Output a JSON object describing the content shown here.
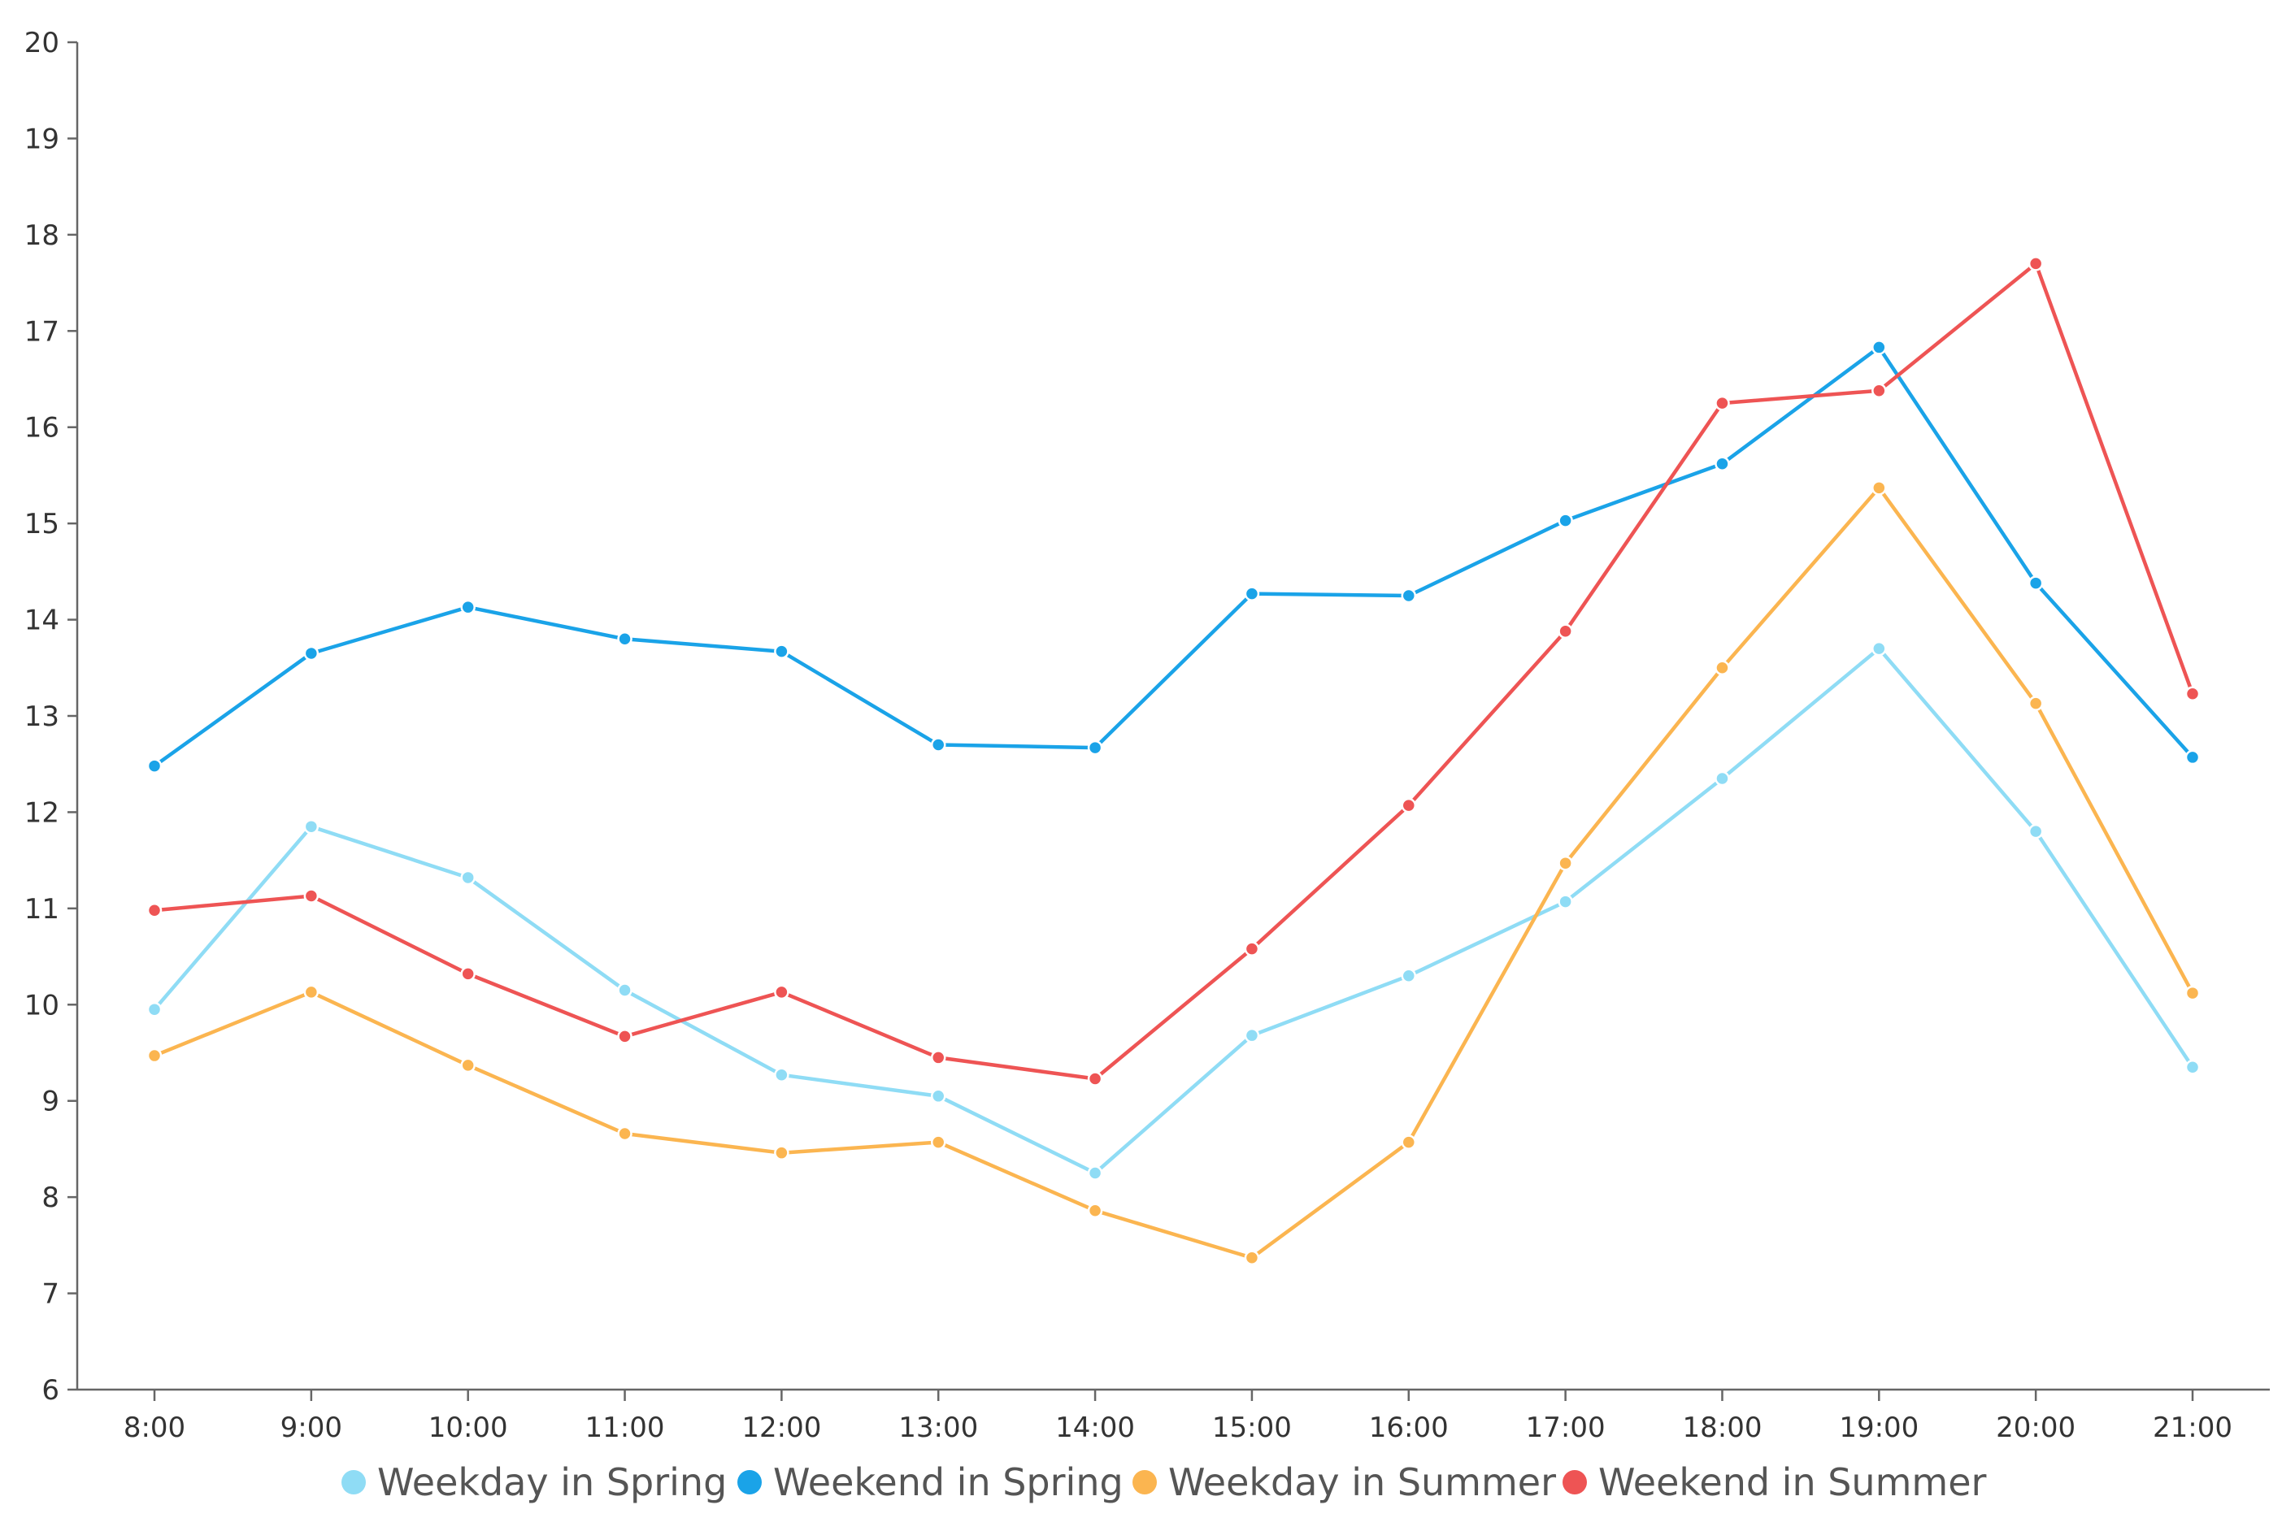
{
  "chart_data": {
    "type": "line",
    "title": "",
    "xlabel": "",
    "ylabel": "",
    "x": [
      "8:00",
      "9:00",
      "10:00",
      "11:00",
      "12:00",
      "13:00",
      "14:00",
      "15:00",
      "16:00",
      "17:00",
      "18:00",
      "19:00",
      "20:00",
      "21:00"
    ],
    "ylim": [
      6,
      20
    ],
    "yticks": [
      6,
      7,
      8,
      9,
      10,
      11,
      12,
      13,
      14,
      15,
      16,
      17,
      18,
      19,
      20
    ],
    "grid": false,
    "legend_position": "bottom",
    "series": [
      {
        "name": "Weekday in Spring",
        "color": "#8fdcf5",
        "values": [
          9.95,
          11.85,
          11.32,
          10.15,
          9.27,
          9.05,
          8.25,
          9.68,
          10.3,
          11.07,
          12.35,
          13.7,
          11.8,
          9.35
        ]
      },
      {
        "name": "Weekend in Spring",
        "color": "#1aa3e8",
        "values": [
          12.48,
          13.65,
          14.13,
          13.8,
          13.67,
          12.7,
          12.67,
          14.27,
          14.25,
          15.03,
          15.62,
          16.83,
          14.38,
          12.57
        ]
      },
      {
        "name": "Weekday in Summer",
        "color": "#fbb550",
        "values": [
          9.47,
          10.13,
          9.37,
          8.66,
          8.46,
          8.57,
          7.86,
          7.37,
          8.57,
          11.47,
          13.5,
          15.37,
          13.13,
          10.12
        ]
      },
      {
        "name": "Weekend in Summer",
        "color": "#ee5454",
        "values": [
          10.98,
          11.13,
          10.32,
          9.67,
          10.13,
          9.45,
          9.23,
          10.58,
          12.07,
          13.88,
          16.25,
          16.38,
          17.7,
          13.23
        ]
      }
    ]
  }
}
